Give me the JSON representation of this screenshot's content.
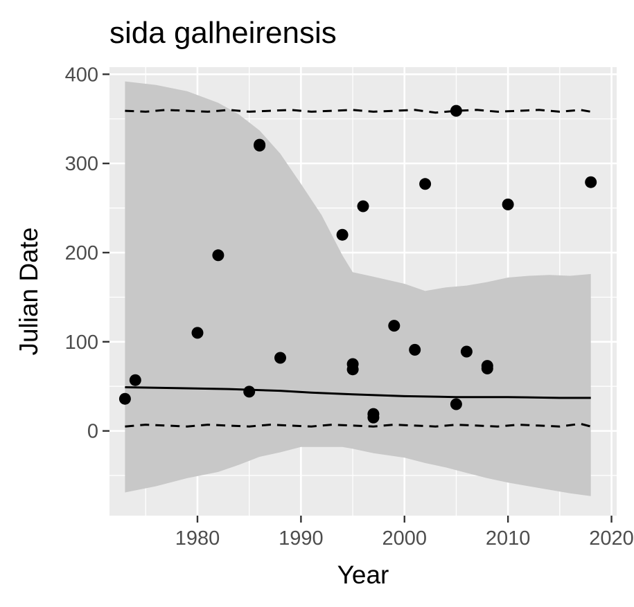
{
  "chart_data": {
    "type": "scatter",
    "title": "sida galheirensis",
    "xlabel": "Year",
    "ylabel": "Julian Date",
    "xlim": [
      1971.5,
      2020.5
    ],
    "ylim": [
      -95,
      408
    ],
    "x_ticks": [
      1980,
      1990,
      2000,
      2010,
      2020
    ],
    "y_ticks": [
      0,
      100,
      200,
      300,
      400
    ],
    "grid": true,
    "legend": "none",
    "colors": {
      "panel_background": "#ebebeb",
      "grid": "#ffffff",
      "ribbon": "#c8c8c8",
      "points": "#000000",
      "lines": "#000000",
      "tick_text": "#4d4d4d"
    },
    "points": [
      {
        "x": 1973,
        "y": 36
      },
      {
        "x": 1974,
        "y": 57
      },
      {
        "x": 1980,
        "y": 110
      },
      {
        "x": 1982,
        "y": 197
      },
      {
        "x": 1985,
        "y": 44
      },
      {
        "x": 1986,
        "y": 321
      },
      {
        "x": 1986,
        "y": 320
      },
      {
        "x": 1988,
        "y": 82
      },
      {
        "x": 1994,
        "y": 220
      },
      {
        "x": 1995,
        "y": 75
      },
      {
        "x": 1995,
        "y": 69
      },
      {
        "x": 1996,
        "y": 252
      },
      {
        "x": 1997,
        "y": 19
      },
      {
        "x": 1997,
        "y": 15
      },
      {
        "x": 1999,
        "y": 118
      },
      {
        "x": 2001,
        "y": 91
      },
      {
        "x": 2002,
        "y": 277
      },
      {
        "x": 2005,
        "y": 359
      },
      {
        "x": 2005,
        "y": 30
      },
      {
        "x": 2006,
        "y": 89
      },
      {
        "x": 2008,
        "y": 73
      },
      {
        "x": 2008,
        "y": 70
      },
      {
        "x": 2010,
        "y": 254
      },
      {
        "x": 2018,
        "y": 279
      }
    ],
    "fit_line": {
      "x": [
        1973,
        1978,
        1983,
        1988,
        1991,
        1995,
        2000,
        2005,
        2010,
        2015,
        2018
      ],
      "y": [
        49,
        48,
        47,
        45,
        43,
        41,
        39,
        38,
        38,
        37,
        37
      ]
    },
    "ribbon": {
      "x": [
        1973,
        1976,
        1979,
        1982,
        1984,
        1986,
        1988,
        1990,
        1992,
        1994,
        1995,
        1997,
        2000,
        2002,
        2004,
        2006,
        2008,
        2010,
        2012,
        2014,
        2016,
        2018
      ],
      "upper": [
        392,
        388,
        381,
        368,
        355,
        337,
        311,
        277,
        242,
        197,
        178,
        173,
        165,
        157,
        161,
        163,
        167,
        172,
        174,
        175,
        174,
        176
      ],
      "lower": [
        -69,
        -62,
        -53,
        -46,
        -38,
        -29,
        -24,
        -18,
        -18,
        -18,
        -20,
        -25,
        -30,
        -36,
        -41,
        -47,
        -53,
        -58,
        -62,
        -66,
        -70,
        -73
      ]
    },
    "upper_dashed": {
      "x": [
        1973,
        1975,
        1977,
        1979,
        1981,
        1983,
        1985,
        1987,
        1989,
        1991,
        1993,
        1995,
        1997,
        1999,
        2001,
        2003,
        2005,
        2007,
        2009,
        2011,
        2013,
        2015,
        2017,
        2018
      ],
      "y": [
        359,
        358,
        360,
        359,
        358,
        360,
        358,
        359,
        360,
        358,
        359,
        360,
        358,
        359,
        360,
        357,
        359,
        360,
        358,
        359,
        360,
        358,
        360,
        358
      ]
    },
    "lower_dashed": {
      "x": [
        1973,
        1975,
        1977,
        1979,
        1981,
        1983,
        1985,
        1987,
        1989,
        1991,
        1993,
        1995,
        1997,
        1999,
        2001,
        2003,
        2005,
        2007,
        2009,
        2011,
        2013,
        2015,
        2017,
        2018
      ],
      "y": [
        5,
        7,
        6,
        5,
        7,
        6,
        5,
        7,
        6,
        5,
        7,
        6,
        5,
        7,
        6,
        5,
        7,
        6,
        5,
        7,
        6,
        5,
        8,
        5
      ]
    }
  }
}
